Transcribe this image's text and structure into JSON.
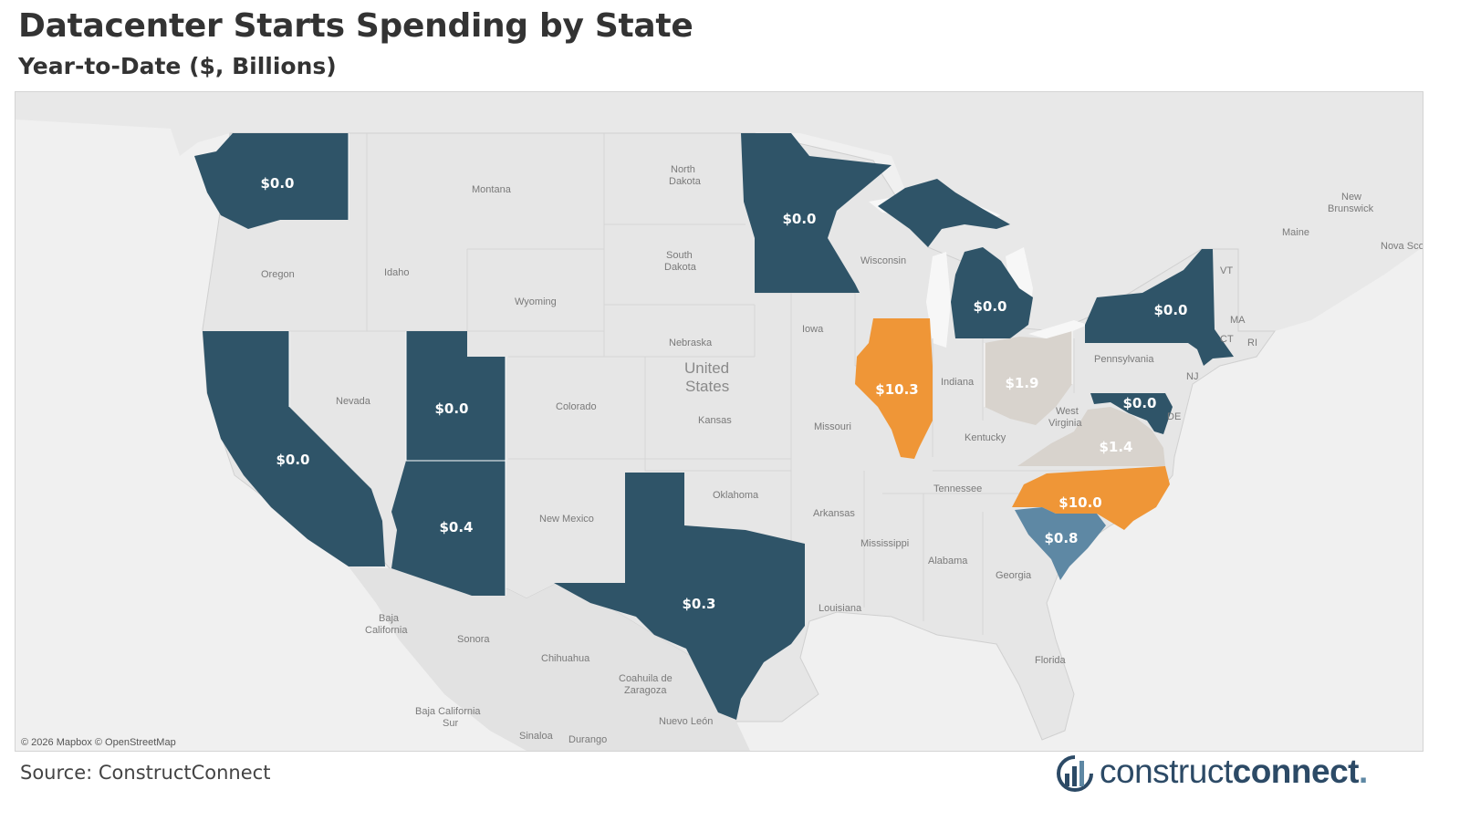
{
  "header": {
    "title": "Datacenter Starts Spending by State",
    "subtitle": "Year-to-Date ($, Billions)"
  },
  "footer": {
    "source": "Source: ConstructConnect",
    "logo_light": "construct",
    "logo_bold": "connect",
    "logo_mark": "."
  },
  "map": {
    "attribution": "© 2026 Mapbox © OpenStreetMap",
    "country_label": [
      "United",
      "States"
    ],
    "base_labels": [
      "Montana",
      "North",
      "Dakota",
      "South",
      "Dakota",
      "Oregon",
      "Idaho",
      "Wyoming",
      "Nebraska",
      "Iowa",
      "Wisconsin",
      "Nevada",
      "Colorado",
      "Kansas",
      "Missouri",
      "Indiana",
      "Kentucky",
      "West",
      "Virginia",
      "Pennsylvania",
      "Tennessee",
      "Oklahoma",
      "Arkansas",
      "New Mexico",
      "Mississippi",
      "Alabama",
      "Georgia",
      "Louisiana",
      "Florida",
      "Baja",
      "California",
      "Sonora",
      "Chihuahua",
      "Coahuila de",
      "Zaragoza",
      "Baja California",
      "Sur",
      "Sinaloa",
      "Durango",
      "Nuevo León",
      "New",
      "Brunswick",
      "Maine",
      "Nova Sco",
      "VT",
      "MA",
      "CT",
      "RI",
      "NJ",
      "DE"
    ],
    "colors": {
      "dark": "#2f5468",
      "orange": "#ef9637",
      "beige": "#d8d3cd",
      "steel": "#5e88a4",
      "base": "#e6e6e6",
      "background": "#f0f0f0"
    }
  },
  "chart_data": {
    "type": "choropleth",
    "title": "Datacenter Starts Spending by State",
    "subtitle": "Year-to-Date ($, Billions)",
    "unit": "$ Billions",
    "states": [
      {
        "state": "Washington",
        "value": 0.0,
        "label": "$0.0"
      },
      {
        "state": "California",
        "value": 0.0,
        "label": "$0.0"
      },
      {
        "state": "Utah",
        "value": 0.0,
        "label": "$0.0"
      },
      {
        "state": "Arizona",
        "value": 0.4,
        "label": "$0.4"
      },
      {
        "state": "Texas",
        "value": 0.3,
        "label": "$0.3"
      },
      {
        "state": "Minnesota",
        "value": 0.0,
        "label": "$0.0"
      },
      {
        "state": "Michigan",
        "value": 0.0,
        "label": "$0.0"
      },
      {
        "state": "Illinois",
        "value": 10.3,
        "label": "$10.3"
      },
      {
        "state": "Ohio",
        "value": 1.9,
        "label": "$1.9"
      },
      {
        "state": "New York",
        "value": 0.0,
        "label": "$0.0"
      },
      {
        "state": "Maryland",
        "value": 0.0,
        "label": "$0.0"
      },
      {
        "state": "Virginia",
        "value": 1.4,
        "label": "$1.4"
      },
      {
        "state": "North Carolina",
        "value": 10.0,
        "label": "$10.0"
      },
      {
        "state": "South Carolina",
        "value": 0.8,
        "label": "$0.8"
      }
    ]
  }
}
